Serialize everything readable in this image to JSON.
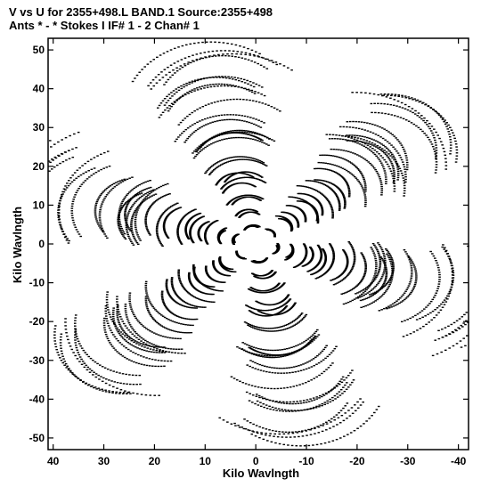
{
  "header": {
    "line1": "V vs U for 2355+498.L BAND.1   Source:2355+498",
    "line2": "Ants * - *     Stokes I  IF# 1 - 2  Chan# 1"
  },
  "chart_data": {
    "type": "scatter",
    "title": "V vs U for 2355+498.L BAND.1   Source:2355+498",
    "subtitle": "Ants * - *     Stokes I  IF# 1 - 2  Chan# 1",
    "xlabel": "Kilo Wavlngth",
    "ylabel": "Kilo Wavlngth",
    "xlim": [
      41,
      -42
    ],
    "ylim": [
      -53,
      53
    ],
    "x_ticks": [
      40,
      30,
      20,
      10,
      0,
      -10,
      -20,
      -30,
      -40
    ],
    "y_ticks": [
      -50,
      -40,
      -30,
      -20,
      -10,
      0,
      10,
      20,
      30,
      40,
      50
    ],
    "grid": false,
    "marker_color": "#000000",
    "uv_tracks": {
      "arm_angles_deg": [
        18,
        78,
        138,
        198,
        258,
        318
      ],
      "arm_length": [
        3,
        50
      ],
      "tracks_per_arm": 14,
      "samples_per_track": 36
    }
  }
}
